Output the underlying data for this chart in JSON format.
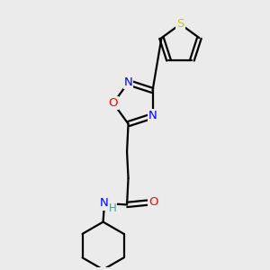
{
  "background_color": "#ebebeb",
  "bond_color": "#000000",
  "atom_colors": {
    "N": "#0000ff",
    "O": "#ff0000",
    "S": "#cccc00",
    "H_color": "#5a9090"
  },
  "font_size_atom": 9.5,
  "line_width": 1.6,
  "xlim": [
    0,
    10
  ],
  "ylim": [
    0,
    10
  ]
}
